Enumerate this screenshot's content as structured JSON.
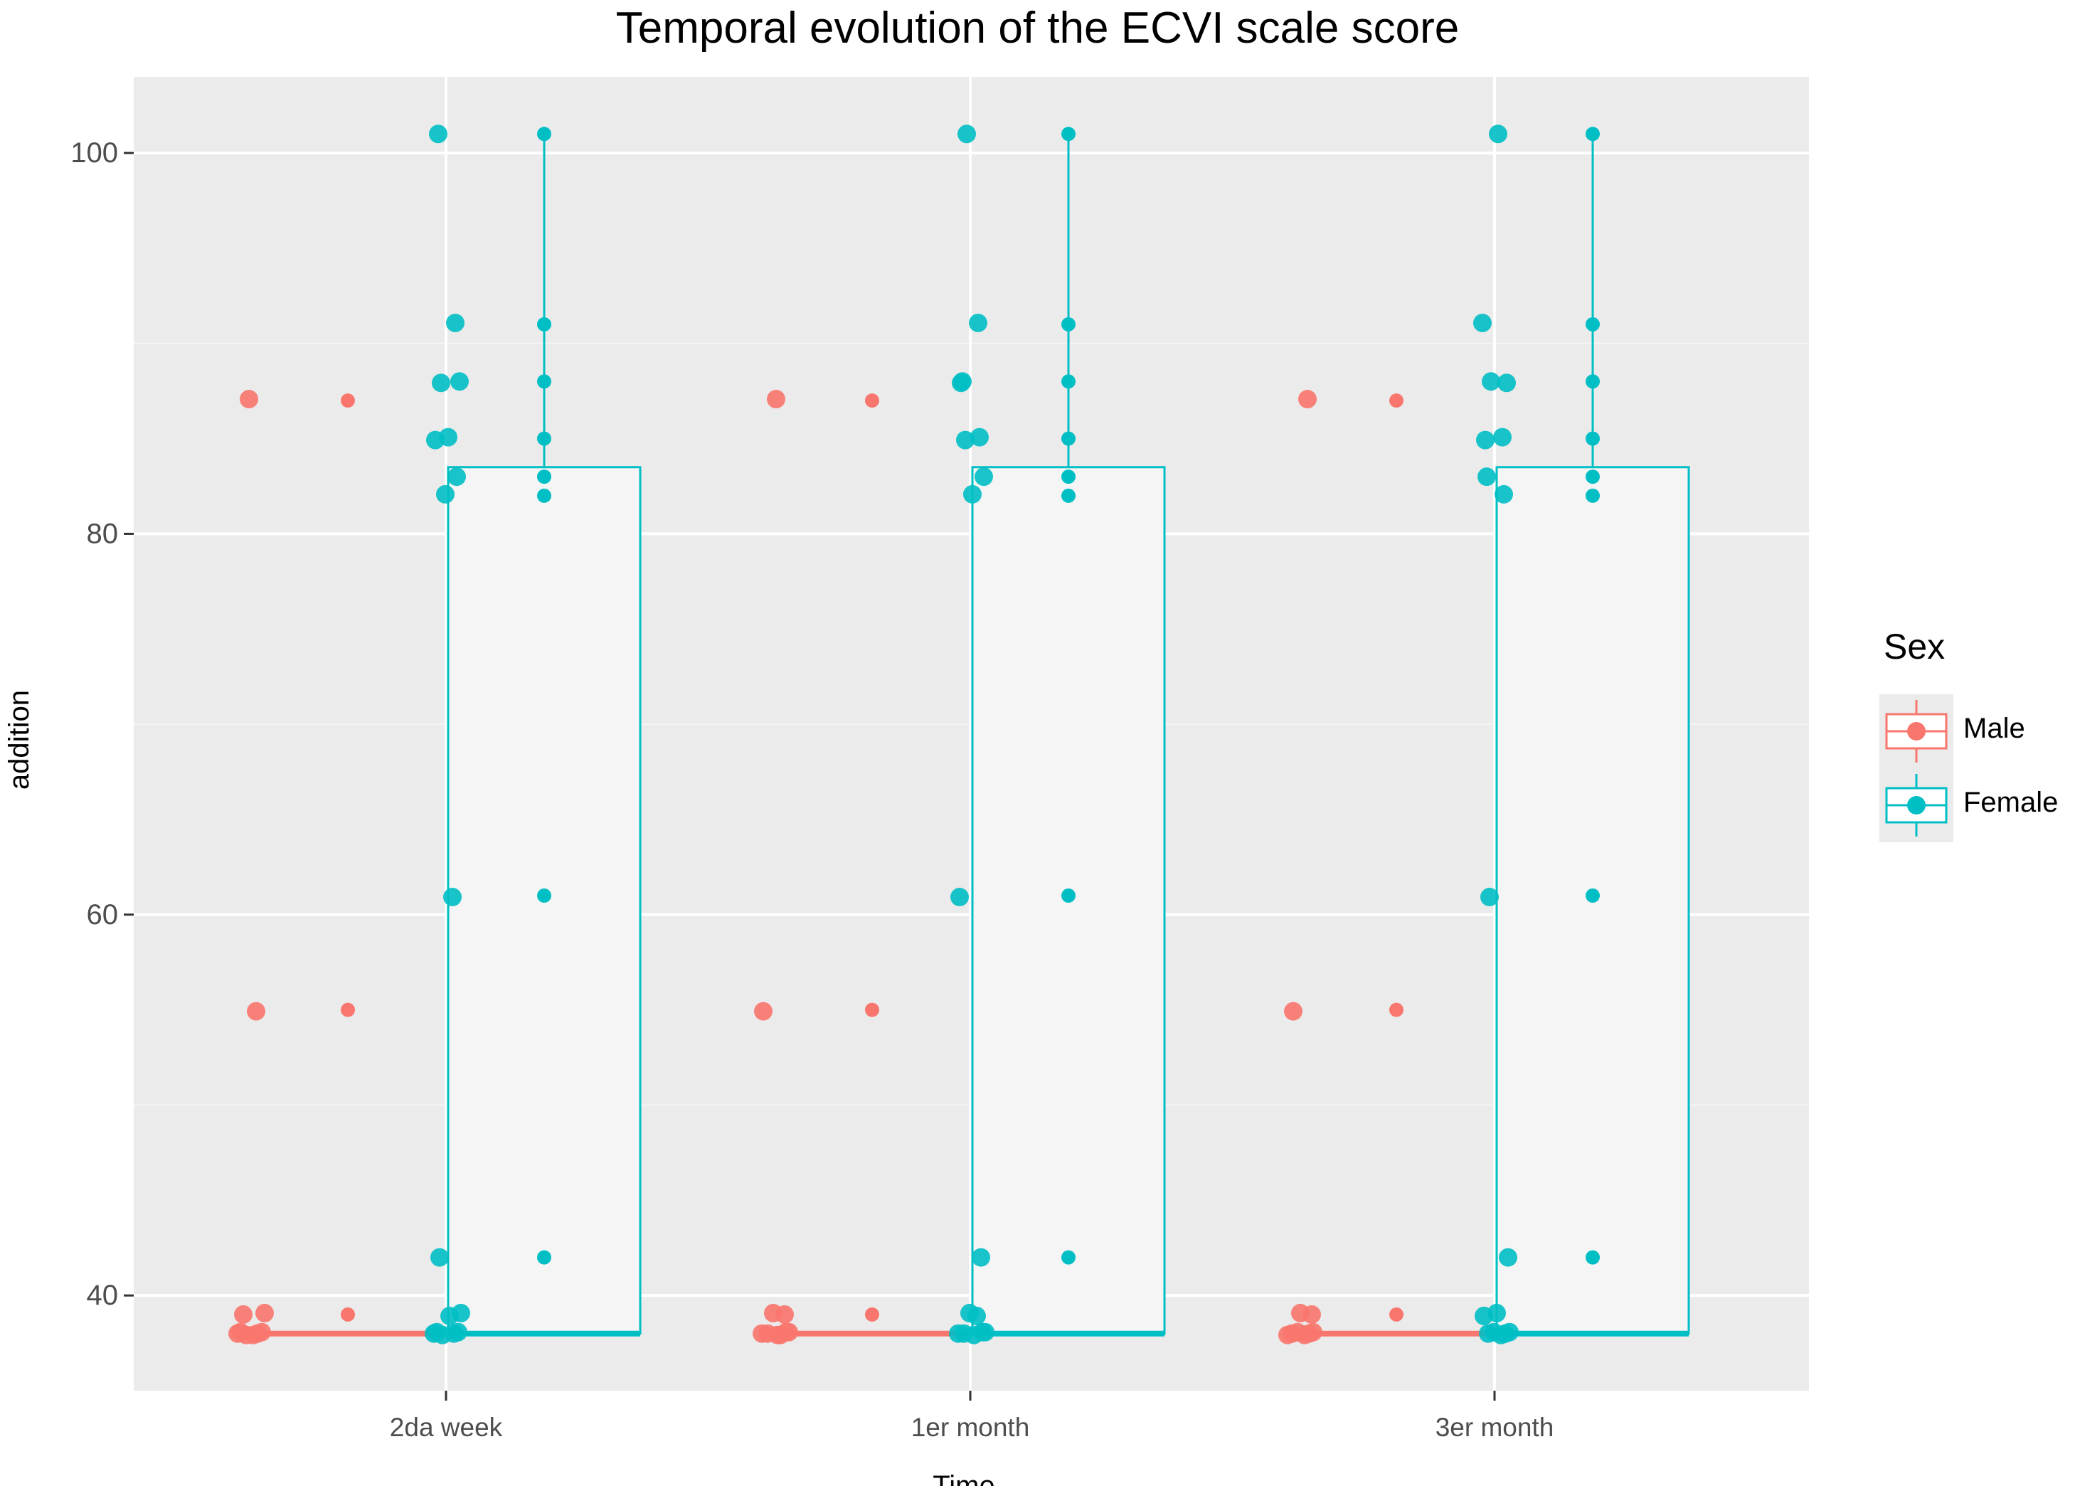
{
  "title": "Temporal evolution of the ECVI scale score",
  "chart_data": {
    "type": "boxplot",
    "title": "Temporal evolution of the ECVI scale score",
    "xlabel": "Time",
    "ylabel": "addition",
    "categories": [
      "2da week",
      "1er month",
      "3er month"
    ],
    "yticks": [
      40,
      60,
      80,
      100
    ],
    "ylim": [
      35,
      104
    ],
    "grid": true,
    "legend": {
      "title": "Sex",
      "position": "right",
      "entries": [
        "Male",
        "Female"
      ]
    },
    "colors": {
      "Male": "#F8766D",
      "Female": "#00BFC4",
      "panel": "#EBEBEB",
      "grid": "#FFFFFF"
    },
    "series": [
      {
        "name": "Male",
        "boxes": [
          {
            "category": "2da week",
            "min": 38,
            "q1": 38,
            "median": 38,
            "q3": 38,
            "max": 38
          },
          {
            "category": "1er month",
            "min": 38,
            "q1": 38,
            "median": 38,
            "q3": 38,
            "max": 38
          },
          {
            "category": "3er month",
            "min": 38,
            "q1": 38,
            "median": 38,
            "q3": 38,
            "max": 38
          }
        ],
        "outliers": [
          39,
          55,
          87
        ],
        "jitter_points": [
          38,
          38,
          38,
          38,
          38,
          38,
          39,
          39,
          55,
          87
        ]
      },
      {
        "name": "Female",
        "boxes": [
          {
            "category": "2da week",
            "min": 38,
            "q1": 38,
            "median": 38,
            "q3": 83.5,
            "max": 101
          },
          {
            "category": "1er month",
            "min": 38,
            "q1": 38,
            "median": 38,
            "q3": 83.5,
            "max": 101
          },
          {
            "category": "3er month",
            "min": 38,
            "q1": 38,
            "median": 38,
            "q3": 83.5,
            "max": 101
          }
        ],
        "outliers": [],
        "jitter_points": [
          38,
          38,
          38,
          38,
          38,
          39,
          39,
          42,
          61,
          82,
          83,
          85,
          85,
          88,
          88,
          91,
          101
        ]
      }
    ]
  }
}
